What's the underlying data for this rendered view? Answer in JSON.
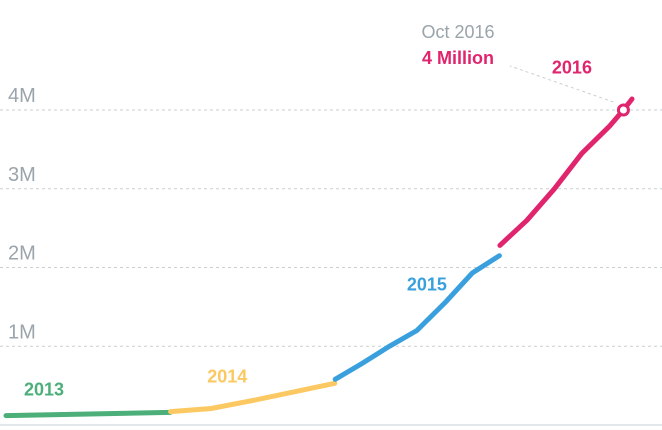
{
  "chart_data": {
    "type": "line",
    "ylim": [
      0,
      4250000
    ],
    "y_ticks": [
      {
        "value": 1000000,
        "label": "1M"
      },
      {
        "value": 2000000,
        "label": "2M"
      },
      {
        "value": 3000000,
        "label": "3M"
      },
      {
        "value": 4000000,
        "label": "4M"
      }
    ],
    "grid": true,
    "series": [
      {
        "name": "2013",
        "color": "#4caf79",
        "points": [
          [
            "2013-01-01",
            120000
          ],
          [
            "2013-12-31",
            160000
          ]
        ]
      },
      {
        "name": "2014",
        "color": "#fcc862",
        "points": [
          [
            "2014-01-01",
            170000
          ],
          [
            "2014-04-01",
            210000
          ],
          [
            "2014-07-01",
            310000
          ],
          [
            "2014-10-01",
            420000
          ],
          [
            "2014-12-31",
            530000
          ]
        ]
      },
      {
        "name": "2015",
        "color": "#3aa0dd",
        "points": [
          [
            "2015-01-01",
            580000
          ],
          [
            "2015-03-01",
            780000
          ],
          [
            "2015-05-01",
            1000000
          ],
          [
            "2015-07-01",
            1200000
          ],
          [
            "2015-09-01",
            1550000
          ],
          [
            "2015-11-01",
            1930000
          ],
          [
            "2015-12-31",
            2150000
          ]
        ]
      },
      {
        "name": "2016",
        "color": "#e0246d",
        "points": [
          [
            "2016-01-01",
            2280000
          ],
          [
            "2016-03-01",
            2600000
          ],
          [
            "2016-05-01",
            3000000
          ],
          [
            "2016-07-01",
            3450000
          ],
          [
            "2016-09-01",
            3800000
          ],
          [
            "2016-10-01",
            4000000
          ],
          [
            "2016-10-20",
            4140000
          ]
        ]
      }
    ],
    "annotation": {
      "x": "2016-10-01",
      "y": 4000000,
      "date_label": "Oct 2016",
      "value_label": "4 Million",
      "color": "#e0246d"
    }
  }
}
